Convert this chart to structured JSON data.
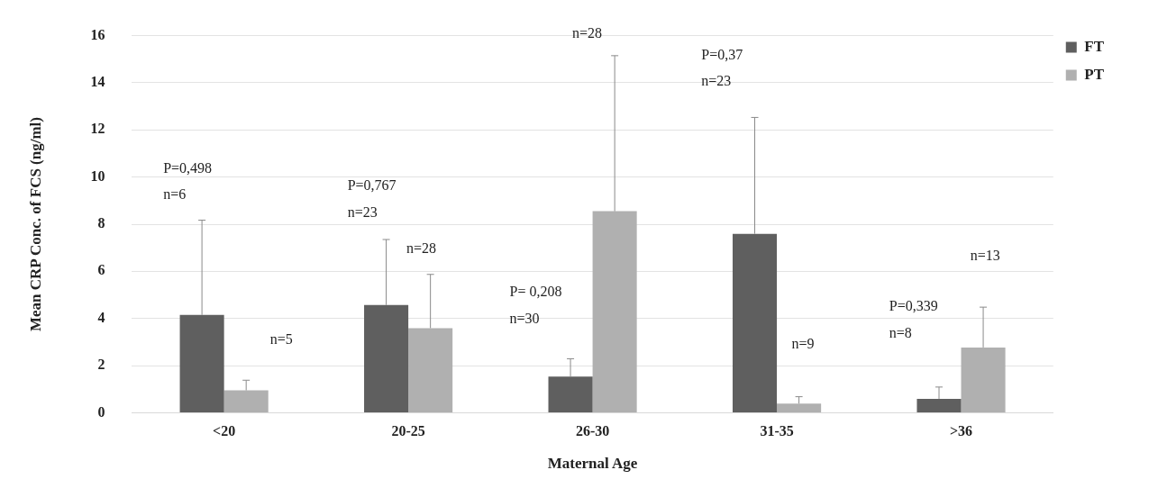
{
  "chart_data": {
    "type": "bar",
    "xlabel": "Maternal Age",
    "ylabel": "Mean CRP Conc. of FCS (ng/ml)",
    "categories": [
      "<20",
      "20-25",
      "26-30",
      "31-35",
      ">36"
    ],
    "series": [
      {
        "name": "FT",
        "color": "#5f5f5f",
        "values": [
          4.15,
          4.57,
          1.53,
          7.59,
          0.59
        ],
        "errors": [
          [
            4.15,
            8.17
          ],
          [
            4.57,
            7.35
          ],
          [
            1.53,
            2.29
          ],
          [
            7.59,
            12.53
          ],
          [
            0.59,
            1.09
          ]
        ]
      },
      {
        "name": "PT",
        "color": "#b0b0b0",
        "values": [
          0.95,
          3.59,
          8.55,
          0.39,
          2.77
        ],
        "errors": [
          [
            0.95,
            1.38
          ],
          [
            3.59,
            5.87
          ],
          [
            8.55,
            15.15
          ],
          [
            0.39,
            0.68
          ],
          [
            2.77,
            4.48
          ]
        ]
      }
    ],
    "ylim": [
      0,
      16
    ],
    "yticks": [
      0,
      2,
      4,
      6,
      8,
      10,
      12,
      14,
      16
    ],
    "grid": "y",
    "legend": "top right",
    "annotations": [
      "P=0,498",
      "n=6",
      "n=5",
      "P=0,767",
      "n=23",
      "n=28",
      "n=28",
      "P= 0,208",
      "n=30",
      "P=0,37",
      "n=23",
      "n=9",
      "P=0,339",
      "n=8",
      "n=13"
    ]
  }
}
